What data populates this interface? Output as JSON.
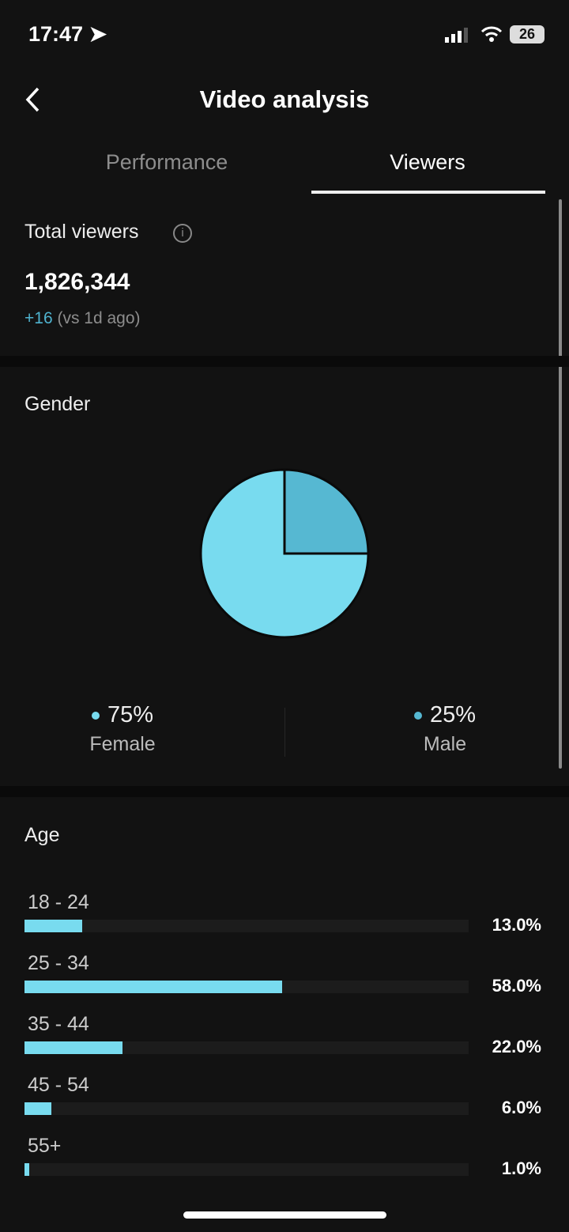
{
  "status": {
    "time": "17:47",
    "battery": "26"
  },
  "header": {
    "title": "Video analysis"
  },
  "tabs": [
    {
      "label": "Performance",
      "active": false
    },
    {
      "label": "Viewers",
      "active": true
    }
  ],
  "total_viewers": {
    "label": "Total viewers",
    "value": "1,826,344",
    "delta": "+16",
    "delta_suffix": "(vs 1d ago)"
  },
  "gender": {
    "label": "Gender",
    "colors": {
      "female": "#78dbef",
      "male": "#56b8d2"
    },
    "items": [
      {
        "pct": "75%",
        "name": "Female",
        "value": 75
      },
      {
        "pct": "25%",
        "name": "Male",
        "value": 25
      }
    ]
  },
  "age": {
    "label": "Age",
    "items": [
      {
        "range": "18 - 24",
        "pct": "13.0%",
        "value": 13
      },
      {
        "range": "25 - 34",
        "pct": "58.0%",
        "value": 58
      },
      {
        "range": "35 - 44",
        "pct": "22.0%",
        "value": 22
      },
      {
        "range": "45 - 54",
        "pct": "6.0%",
        "value": 6
      },
      {
        "range": "55+",
        "pct": "1.0%",
        "value": 1
      }
    ]
  }
}
